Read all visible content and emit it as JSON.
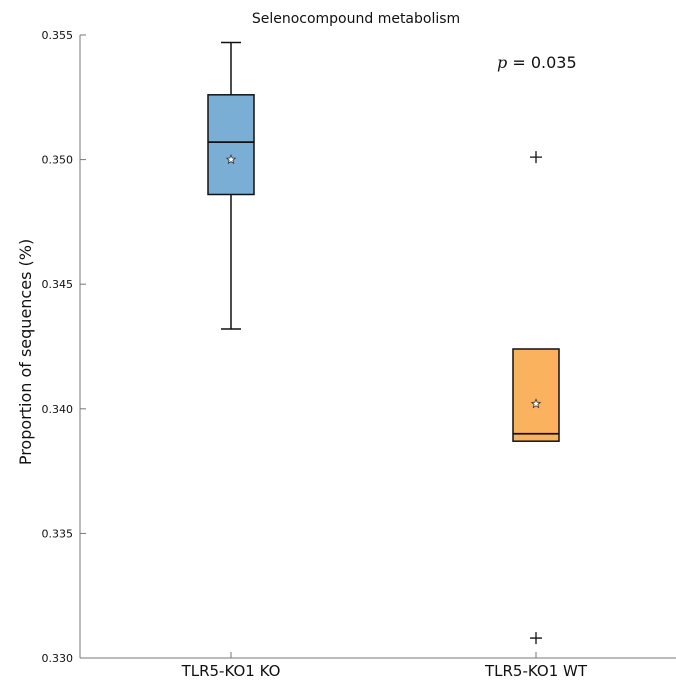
{
  "chart_data": {
    "type": "box",
    "title": "Selenocompound metabolism",
    "xlabel": "",
    "ylabel": "Proportion of sequences (%)",
    "ylim": [
      0.33,
      0.355
    ],
    "yticks": [
      "0.330",
      "0.335",
      "0.340",
      "0.345",
      "0.350",
      "0.355"
    ],
    "grid": false,
    "categories": [
      "TLR5-KO1 KO",
      "TLR5-KO1 WT"
    ],
    "boxes": [
      {
        "category": "TLR5-KO1 KO",
        "whisker_low": 0.3432,
        "q1": 0.3486,
        "median": 0.3507,
        "q3": 0.3526,
        "whisker_high": 0.3547,
        "mean": 0.35,
        "outliers": [],
        "color": "#7aaed4"
      },
      {
        "category": "TLR5-KO1 WT",
        "whisker_low": 0.3387,
        "q1": 0.3387,
        "median": 0.339,
        "q3": 0.3424,
        "whisker_high": 0.3424,
        "mean": 0.3402,
        "outliers": [
          0.3501,
          0.3308
        ],
        "color": "#fbb25e"
      }
    ],
    "annotation": {
      "p_symbol": "p",
      "p_text": " = 0.035",
      "placement": "top-right"
    }
  }
}
